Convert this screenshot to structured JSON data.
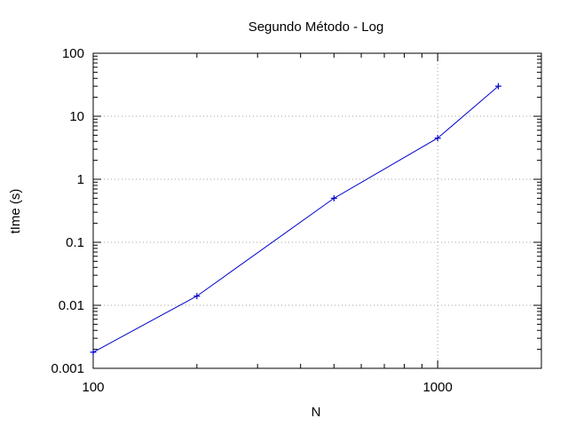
{
  "chart_data": {
    "type": "line",
    "title": "Segundo Método - Log",
    "xlabel": "N",
    "ylabel": "tIme (s)",
    "xscale": "log",
    "yscale": "log",
    "xlim": [
      100,
      2000
    ],
    "ylim": [
      0.001,
      100
    ],
    "xticks": [
      {
        "value": 100,
        "label": "100"
      },
      {
        "value": 1000,
        "label": "1000"
      }
    ],
    "yticks": [
      {
        "value": 0.001,
        "label": "0.001"
      },
      {
        "value": 0.01,
        "label": "0.01"
      },
      {
        "value": 0.1,
        "label": "0.1"
      },
      {
        "value": 1,
        "label": "1"
      },
      {
        "value": 10,
        "label": "10"
      },
      {
        "value": 100,
        "label": "100"
      }
    ],
    "grid": true,
    "series": [
      {
        "x": [
          100,
          200,
          500,
          1000,
          1500
        ],
        "y": [
          0.0018,
          0.014,
          0.5,
          4.5,
          30
        ],
        "color": "#0000cc",
        "marker": "plus"
      }
    ]
  }
}
